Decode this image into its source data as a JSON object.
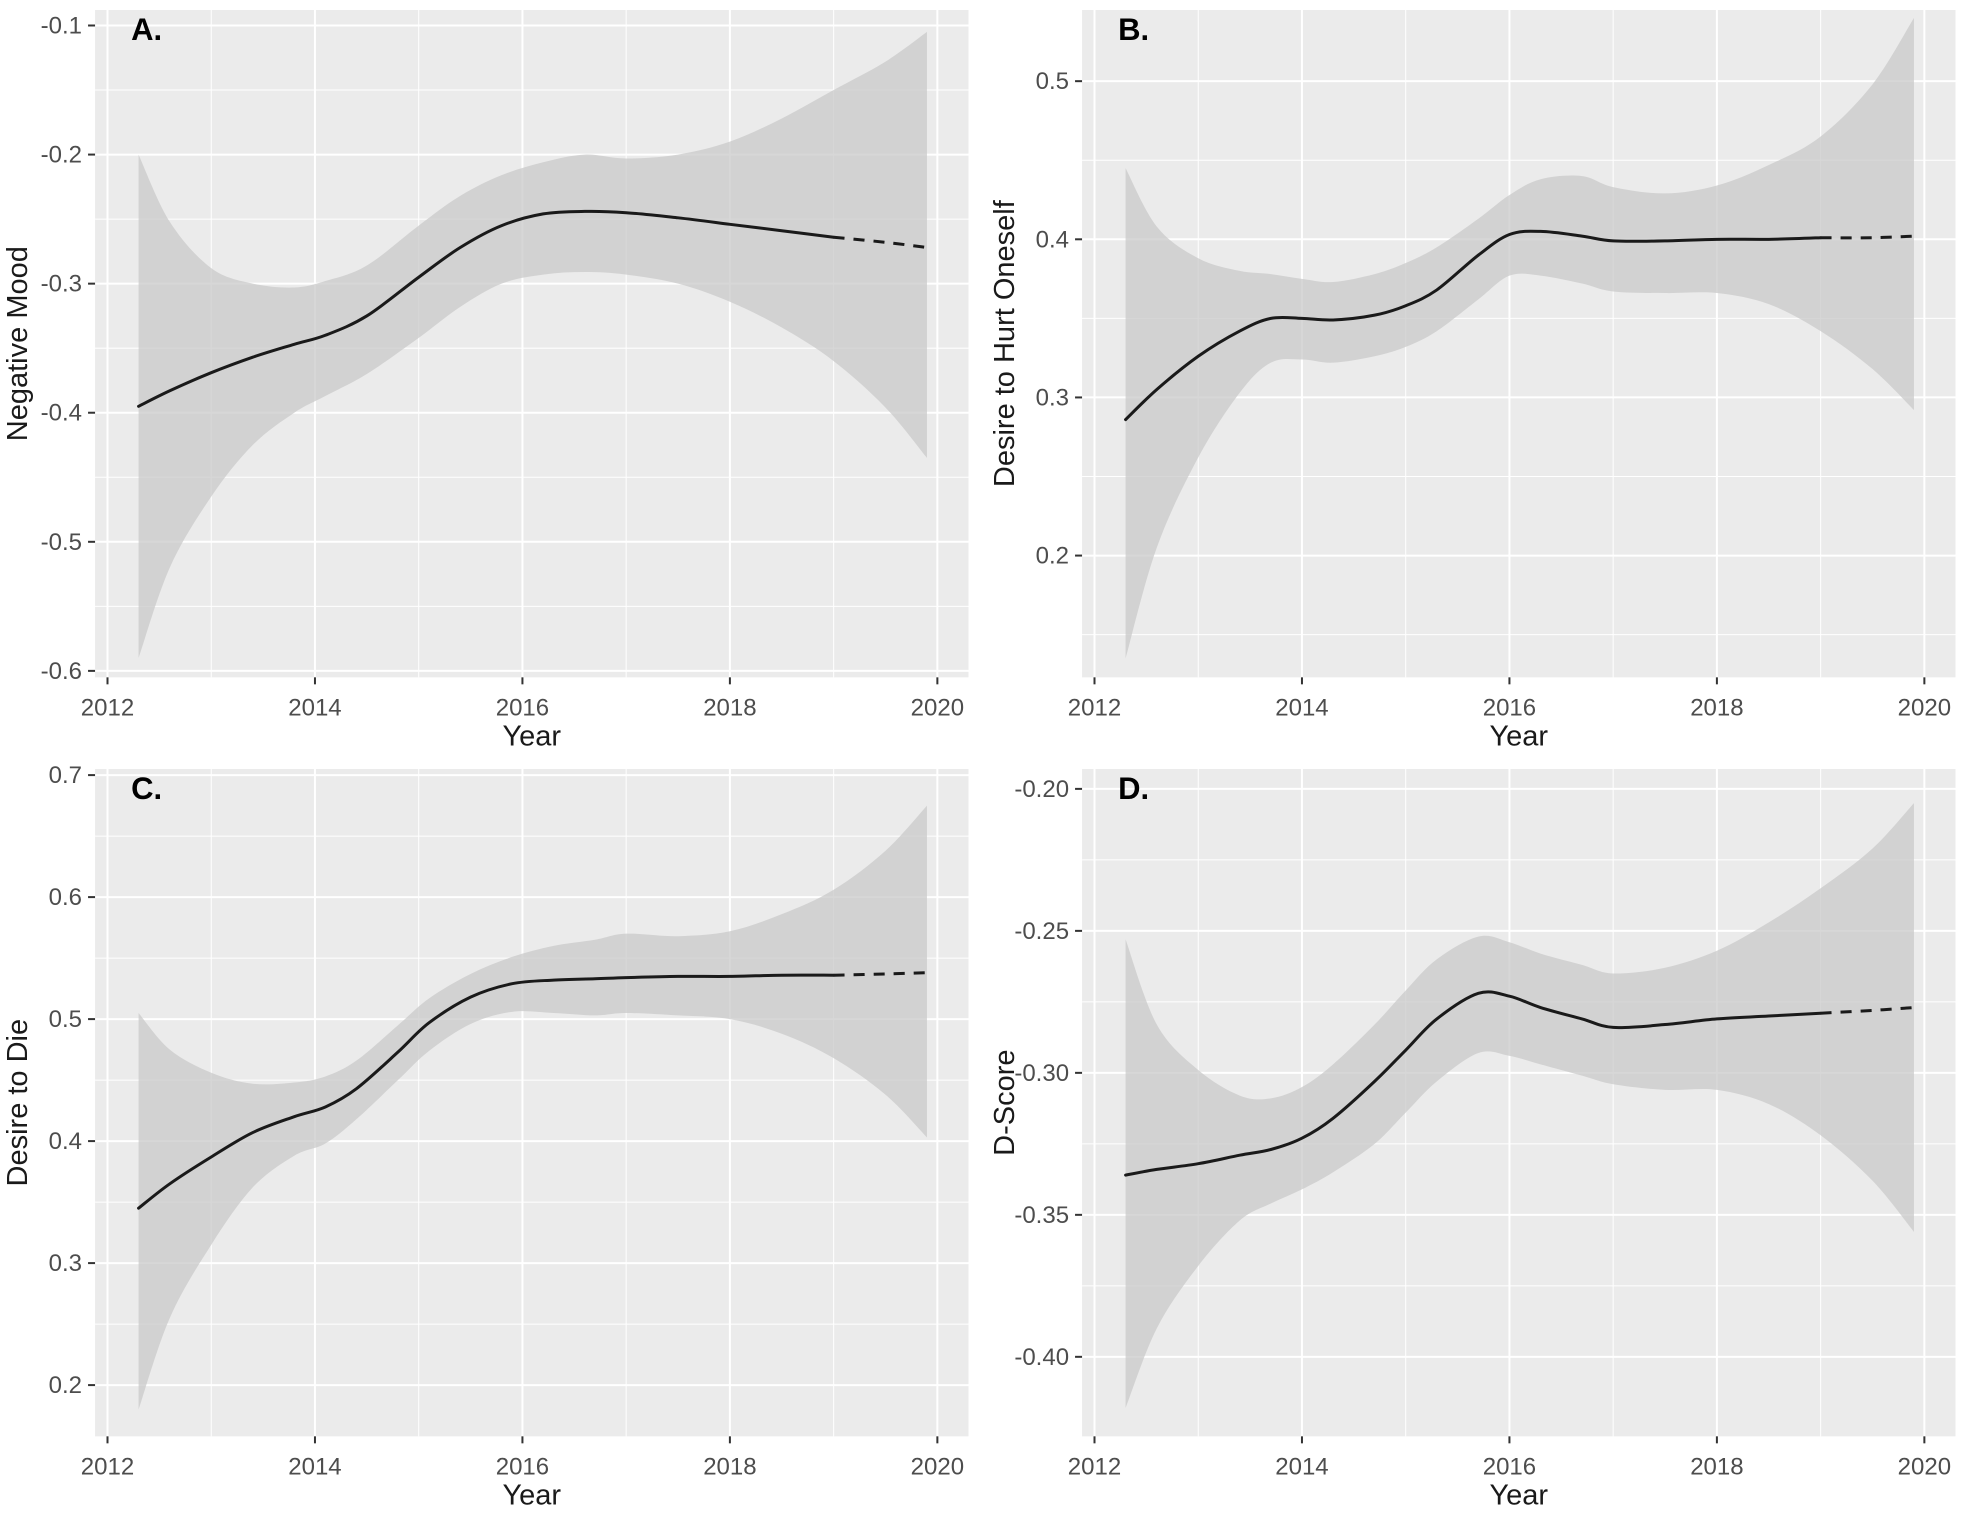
{
  "figure": {
    "background": "#ffffff",
    "panel_bg": "#ebebeb",
    "grid_color": "#ffffff",
    "ribbon_color": "#c9c9c9",
    "ribbon_opacity": 0.75,
    "line_color": "#1a1a1a",
    "tick_color": "#333333",
    "tick_label_color": "#4d4d4d",
    "axis_title_color": "#1a1a1a",
    "panel_label_color": "#000000"
  },
  "chart_data": [
    {
      "type": "line",
      "panel_label": "A.",
      "ylabel": "Negative Mood",
      "xlabel": "Year",
      "xlim": [
        2011.88,
        2020.3
      ],
      "ylim": [
        -0.605,
        -0.088
      ],
      "xticks": [
        2012,
        2014,
        2016,
        2018,
        2020
      ],
      "xtick_labels": [
        "2012",
        "2014",
        "2016",
        "2018",
        "2020"
      ],
      "xminor": [
        2013,
        2015,
        2017,
        2019
      ],
      "yticks": [
        -0.6,
        -0.5,
        -0.4,
        -0.3,
        -0.2,
        -0.1
      ],
      "ytick_labels": [
        "-0.6",
        "-0.5",
        "-0.4",
        "-0.3",
        "-0.2",
        "-0.1"
      ],
      "yminor": [
        -0.55,
        -0.45,
        -0.35,
        -0.25,
        -0.15
      ],
      "dash_from": 2019,
      "line": {
        "x": [
          2012.3,
          2012.6,
          2013,
          2013.4,
          2013.8,
          2014.1,
          2014.5,
          2015,
          2015.4,
          2015.8,
          2016.2,
          2016.6,
          2017,
          2017.5,
          2018,
          2018.5,
          2019,
          2019.5,
          2019.9
        ],
        "y": [
          -0.395,
          -0.383,
          -0.369,
          -0.357,
          -0.347,
          -0.34,
          -0.325,
          -0.295,
          -0.272,
          -0.255,
          -0.246,
          -0.244,
          -0.245,
          -0.249,
          -0.254,
          -0.259,
          -0.264,
          -0.268,
          -0.272
        ]
      },
      "band": {
        "x": [
          2012.3,
          2012.6,
          2013,
          2013.4,
          2013.8,
          2014.1,
          2014.5,
          2015,
          2015.4,
          2015.8,
          2016.2,
          2016.6,
          2017,
          2017.5,
          2018,
          2018.5,
          2019,
          2019.5,
          2019.9
        ],
        "upper": [
          -0.2,
          -0.252,
          -0.288,
          -0.3,
          -0.303,
          -0.298,
          -0.286,
          -0.255,
          -0.232,
          -0.216,
          -0.206,
          -0.2,
          -0.203,
          -0.2,
          -0.19,
          -0.172,
          -0.15,
          -0.128,
          -0.105
        ],
        "lower": [
          -0.59,
          -0.52,
          -0.465,
          -0.425,
          -0.4,
          -0.387,
          -0.37,
          -0.342,
          -0.318,
          -0.3,
          -0.293,
          -0.291,
          -0.293,
          -0.3,
          -0.314,
          -0.334,
          -0.36,
          -0.396,
          -0.435
        ]
      }
    },
    {
      "type": "line",
      "panel_label": "B.",
      "ylabel": "Desire to Hurt Oneself",
      "xlabel": "Year",
      "xlim": [
        2011.88,
        2020.3
      ],
      "ylim": [
        0.123,
        0.545
      ],
      "xticks": [
        2012,
        2014,
        2016,
        2018,
        2020
      ],
      "xtick_labels": [
        "2012",
        "2014",
        "2016",
        "2018",
        "2020"
      ],
      "xminor": [
        2013,
        2015,
        2017,
        2019
      ],
      "yticks": [
        0.2,
        0.3,
        0.4,
        0.5
      ],
      "ytick_labels": [
        "0.2",
        "0.3",
        "0.4",
        "0.5"
      ],
      "yminor": [
        0.15,
        0.25,
        0.35,
        0.45
      ],
      "dash_from": 2019,
      "line": {
        "x": [
          2012.3,
          2012.6,
          2013,
          2013.4,
          2013.7,
          2014,
          2014.3,
          2014.7,
          2015,
          2015.3,
          2015.7,
          2016,
          2016.3,
          2016.7,
          2017,
          2017.5,
          2018,
          2018.5,
          2019,
          2019.5,
          2019.9
        ],
        "y": [
          0.286,
          0.305,
          0.326,
          0.342,
          0.35,
          0.35,
          0.349,
          0.352,
          0.358,
          0.368,
          0.39,
          0.403,
          0.405,
          0.402,
          0.399,
          0.399,
          0.4,
          0.4,
          0.401,
          0.401,
          0.402
        ]
      },
      "band": {
        "x": [
          2012.3,
          2012.6,
          2013,
          2013.4,
          2013.7,
          2014,
          2014.3,
          2014.7,
          2015,
          2015.3,
          2015.7,
          2016,
          2016.3,
          2016.7,
          2017,
          2017.5,
          2018,
          2018.5,
          2019,
          2019.5,
          2019.9
        ],
        "upper": [
          0.445,
          0.408,
          0.388,
          0.38,
          0.378,
          0.375,
          0.373,
          0.378,
          0.385,
          0.395,
          0.413,
          0.428,
          0.438,
          0.44,
          0.433,
          0.429,
          0.434,
          0.447,
          0.465,
          0.498,
          0.54
        ],
        "lower": [
          0.135,
          0.205,
          0.262,
          0.303,
          0.322,
          0.324,
          0.322,
          0.326,
          0.332,
          0.342,
          0.362,
          0.377,
          0.377,
          0.372,
          0.367,
          0.366,
          0.366,
          0.359,
          0.342,
          0.318,
          0.292
        ]
      }
    },
    {
      "type": "line",
      "panel_label": "C.",
      "ylabel": "Desire to Die",
      "xlabel": "Year",
      "xlim": [
        2011.88,
        2020.3
      ],
      "ylim": [
        0.158,
        0.705
      ],
      "xticks": [
        2012,
        2014,
        2016,
        2018,
        2020
      ],
      "xtick_labels": [
        "2012",
        "2014",
        "2016",
        "2018",
        "2020"
      ],
      "xminor": [
        2013,
        2015,
        2017,
        2019
      ],
      "yticks": [
        0.2,
        0.3,
        0.4,
        0.5,
        0.6,
        0.7
      ],
      "ytick_labels": [
        "0.2",
        "0.3",
        "0.4",
        "0.5",
        "0.6",
        "0.7"
      ],
      "yminor": [
        0.25,
        0.35,
        0.45,
        0.55,
        0.65
      ],
      "dash_from": 2019,
      "line": {
        "x": [
          2012.3,
          2012.6,
          2013,
          2013.4,
          2013.8,
          2014.1,
          2014.4,
          2014.8,
          2015.1,
          2015.5,
          2015.9,
          2016.3,
          2016.7,
          2017,
          2017.5,
          2018,
          2018.5,
          2019,
          2019.5,
          2019.9
        ],
        "y": [
          0.345,
          0.365,
          0.387,
          0.407,
          0.42,
          0.428,
          0.443,
          0.473,
          0.497,
          0.518,
          0.529,
          0.532,
          0.533,
          0.534,
          0.535,
          0.535,
          0.536,
          0.536,
          0.537,
          0.538
        ]
      },
      "band": {
        "x": [
          2012.3,
          2012.6,
          2013,
          2013.4,
          2013.8,
          2014.1,
          2014.4,
          2014.8,
          2015.1,
          2015.5,
          2015.9,
          2016.3,
          2016.7,
          2017,
          2017.5,
          2018,
          2018.5,
          2019,
          2019.5,
          2019.9
        ],
        "upper": [
          0.505,
          0.475,
          0.456,
          0.447,
          0.448,
          0.453,
          0.466,
          0.495,
          0.517,
          0.537,
          0.551,
          0.56,
          0.565,
          0.57,
          0.568,
          0.572,
          0.586,
          0.606,
          0.638,
          0.675
        ],
        "lower": [
          0.18,
          0.255,
          0.315,
          0.362,
          0.388,
          0.398,
          0.418,
          0.45,
          0.474,
          0.496,
          0.506,
          0.505,
          0.503,
          0.505,
          0.503,
          0.5,
          0.488,
          0.468,
          0.438,
          0.403
        ]
      }
    },
    {
      "type": "line",
      "panel_label": "D.",
      "ylabel": "D-Score",
      "xlabel": "Year",
      "xlim": [
        2011.88,
        2020.3
      ],
      "ylim": [
        -0.428,
        -0.193
      ],
      "xticks": [
        2012,
        2014,
        2016,
        2018,
        2020
      ],
      "xtick_labels": [
        "2012",
        "2014",
        "2016",
        "2018",
        "2020"
      ],
      "xminor": [
        2013,
        2015,
        2017,
        2019
      ],
      "yticks": [
        -0.4,
        -0.35,
        -0.3,
        -0.25,
        -0.2
      ],
      "ytick_labels": [
        "-0.40",
        "-0.35",
        "-0.30",
        "-0.25",
        "-0.20"
      ],
      "yminor": [
        -0.375,
        -0.325,
        -0.275,
        -0.225
      ],
      "dash_from": 2019,
      "line": {
        "x": [
          2012.3,
          2012.6,
          2013,
          2013.4,
          2013.7,
          2014,
          2014.3,
          2014.7,
          2015,
          2015.3,
          2015.7,
          2016,
          2016.3,
          2016.7,
          2017,
          2017.5,
          2018,
          2018.5,
          2019,
          2019.5,
          2019.9
        ],
        "y": [
          -0.336,
          -0.334,
          -0.332,
          -0.329,
          -0.327,
          -0.323,
          -0.316,
          -0.303,
          -0.292,
          -0.281,
          -0.272,
          -0.273,
          -0.277,
          -0.281,
          -0.284,
          -0.283,
          -0.281,
          -0.28,
          -0.279,
          -0.278,
          -0.277
        ]
      },
      "band": {
        "x": [
          2012.3,
          2012.6,
          2013,
          2013.4,
          2013.7,
          2014,
          2014.3,
          2014.7,
          2015,
          2015.3,
          2015.7,
          2016,
          2016.3,
          2016.7,
          2017,
          2017.5,
          2018,
          2018.5,
          2019,
          2019.5,
          2019.9
        ],
        "upper": [
          -0.253,
          -0.283,
          -0.299,
          -0.308,
          -0.309,
          -0.305,
          -0.297,
          -0.283,
          -0.271,
          -0.26,
          -0.252,
          -0.254,
          -0.258,
          -0.262,
          -0.265,
          -0.263,
          -0.257,
          -0.247,
          -0.235,
          -0.221,
          -0.205
        ],
        "lower": [
          -0.418,
          -0.39,
          -0.368,
          -0.352,
          -0.346,
          -0.341,
          -0.335,
          -0.325,
          -0.314,
          -0.303,
          -0.293,
          -0.294,
          -0.297,
          -0.301,
          -0.304,
          -0.306,
          -0.306,
          -0.311,
          -0.322,
          -0.338,
          -0.356
        ]
      }
    }
  ]
}
